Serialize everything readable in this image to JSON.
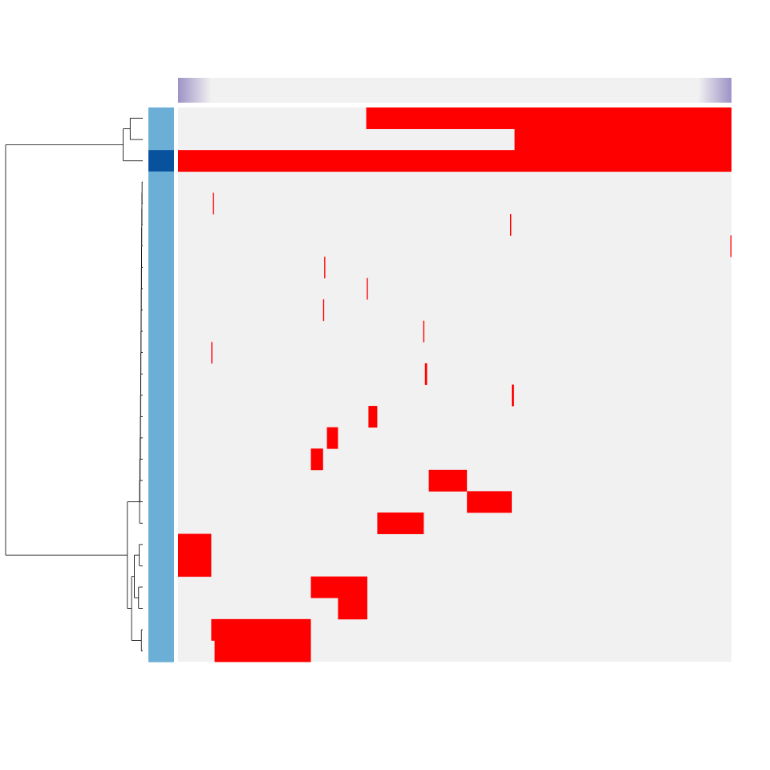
{
  "chart_data": {
    "type": "heatmap",
    "title": "",
    "xlabel": "",
    "ylabel": "",
    "legend": "none",
    "grid": false,
    "n_rows": 26,
    "n_cols": 1000,
    "colors": {
      "background": "#F1F1F1",
      "present": "#FF0000",
      "row_annotation_light": "#6BAED6",
      "row_annotation_dark": "#08519C",
      "column_bar_edge": "#9E92C6",
      "dendrogram": "#000000"
    },
    "column_annotation": {
      "type": "gradient",
      "description_values": [
        1,
        0,
        0,
        1
      ]
    },
    "row_annotation": [
      "light",
      "light",
      "dark",
      "light",
      "light",
      "light",
      "light",
      "light",
      "light",
      "light",
      "light",
      "light",
      "light",
      "light",
      "light",
      "light",
      "light",
      "light",
      "light",
      "light",
      "light",
      "light",
      "light",
      "light",
      "light",
      "light"
    ],
    "rows": [
      {
        "segments": [
          [
            340,
            1000
          ]
        ]
      },
      {
        "segments": [
          [
            608,
            1000
          ]
        ]
      },
      {
        "segments": [
          [
            0,
            1000
          ]
        ]
      },
      {
        "segments": []
      },
      {
        "segments": [
          [
            63,
            65
          ]
        ]
      },
      {
        "segments": [
          [
            600,
            602
          ]
        ]
      },
      {
        "segments": [
          [
            998,
            1000
          ]
        ]
      },
      {
        "segments": [
          [
            264,
            266
          ]
        ]
      },
      {
        "segments": [
          [
            341,
            343
          ]
        ]
      },
      {
        "segments": [
          [
            262,
            264
          ]
        ]
      },
      {
        "segments": [
          [
            443,
            445
          ]
        ]
      },
      {
        "segments": [
          [
            60,
            62
          ]
        ]
      },
      {
        "segments": [
          [
            446,
            450
          ]
        ]
      },
      {
        "segments": [
          [
            603,
            607
          ]
        ]
      },
      {
        "segments": [
          [
            344,
            360
          ]
        ]
      },
      {
        "segments": [
          [
            269,
            289
          ]
        ]
      },
      {
        "segments": [
          [
            240,
            262
          ]
        ]
      },
      {
        "segments": [
          [
            453,
            522
          ]
        ]
      },
      {
        "segments": [
          [
            522,
            603
          ]
        ]
      },
      {
        "segments": [
          [
            360,
            444
          ]
        ]
      },
      {
        "segments": [
          [
            0,
            60
          ]
        ]
      },
      {
        "segments": [
          [
            0,
            60
          ]
        ]
      },
      {
        "segments": [
          [
            240,
            342
          ]
        ]
      },
      {
        "segments": [
          [
            289,
            342
          ]
        ]
      },
      {
        "segments": [
          [
            60,
            240
          ]
        ]
      },
      {
        "segments": [
          [
            66,
            240
          ]
        ]
      }
    ],
    "dendrogram": {
      "merges": [
        [
          0,
          1
        ],
        [
          -1,
          2
        ],
        [
          3,
          4
        ],
        [
          -3,
          5
        ],
        [
          -4,
          6
        ],
        [
          -5,
          7
        ],
        [
          -6,
          8
        ],
        [
          -7,
          9
        ],
        [
          -8,
          10
        ],
        [
          -9,
          11
        ],
        [
          -10,
          12
        ],
        [
          -11,
          13
        ],
        [
          -12,
          14
        ],
        [
          -13,
          15
        ],
        [
          -14,
          16
        ],
        [
          -15,
          17
        ],
        [
          -16,
          18
        ],
        [
          -17,
          19
        ],
        [
          20,
          21
        ],
        [
          22,
          23
        ],
        [
          -19,
          -20
        ],
        [
          24,
          25
        ],
        [
          -21,
          -22
        ],
        [
          -18,
          -23
        ],
        [
          -2,
          -24
        ]
      ],
      "heights": [
        0.09,
        0.14,
        0.005,
        0.006,
        0.007,
        0.008,
        0.009,
        0.01,
        0.011,
        0.012,
        0.013,
        0.014,
        0.015,
        0.016,
        0.017,
        0.019,
        0.021,
        0.023,
        0.025,
        0.03,
        0.06,
        0.01,
        0.08,
        0.11,
        0.98
      ]
    }
  }
}
